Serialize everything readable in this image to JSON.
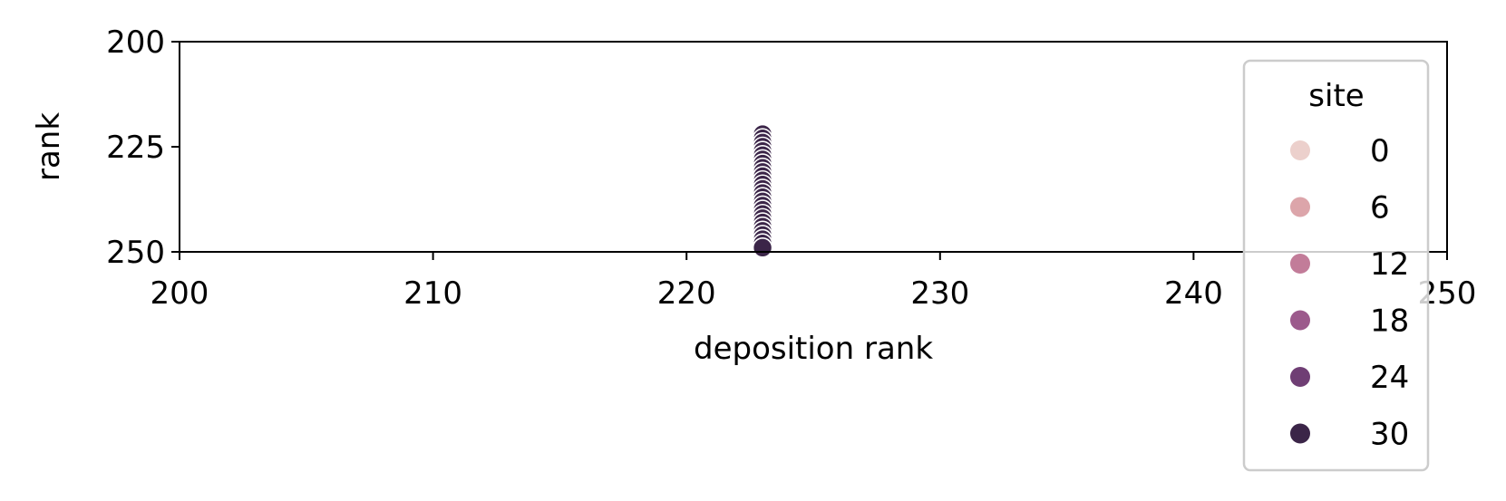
{
  "chart_data": {
    "type": "scatter",
    "xlabel": "deposition rank",
    "ylabel": "rank",
    "xlim": [
      200,
      250
    ],
    "ylim": [
      250,
      200
    ],
    "y_inverted": true,
    "xticks": [
      200,
      210,
      220,
      230,
      240,
      250
    ],
    "yticks": [
      200,
      225,
      250
    ],
    "grid": false,
    "legend": {
      "title": "site",
      "placement": "right",
      "entries": [
        {
          "label": "0",
          "color": "#ecd0cc"
        },
        {
          "label": "6",
          "color": "#dca5aa"
        },
        {
          "label": "12",
          "color": "#c27c99"
        },
        {
          "label": "18",
          "color": "#9c5a8c"
        },
        {
          "label": "24",
          "color": "#6f3e74"
        },
        {
          "label": "30",
          "color": "#3b2548"
        }
      ]
    },
    "series": [
      {
        "color": "#3b2548",
        "edgecolor": "#ffffff",
        "x": [
          223,
          223,
          223,
          223,
          223,
          223,
          223,
          223,
          223,
          223,
          223,
          223,
          223,
          223,
          223,
          223,
          223,
          223,
          223,
          223,
          223,
          223,
          223,
          223,
          223,
          223,
          223,
          223
        ],
        "y": [
          222,
          223,
          224,
          225,
          226,
          227,
          228,
          229,
          230,
          231,
          232,
          233,
          234,
          235,
          236,
          237,
          238,
          239,
          240,
          241,
          242,
          243,
          244,
          245,
          246,
          247,
          248,
          249
        ]
      }
    ]
  }
}
